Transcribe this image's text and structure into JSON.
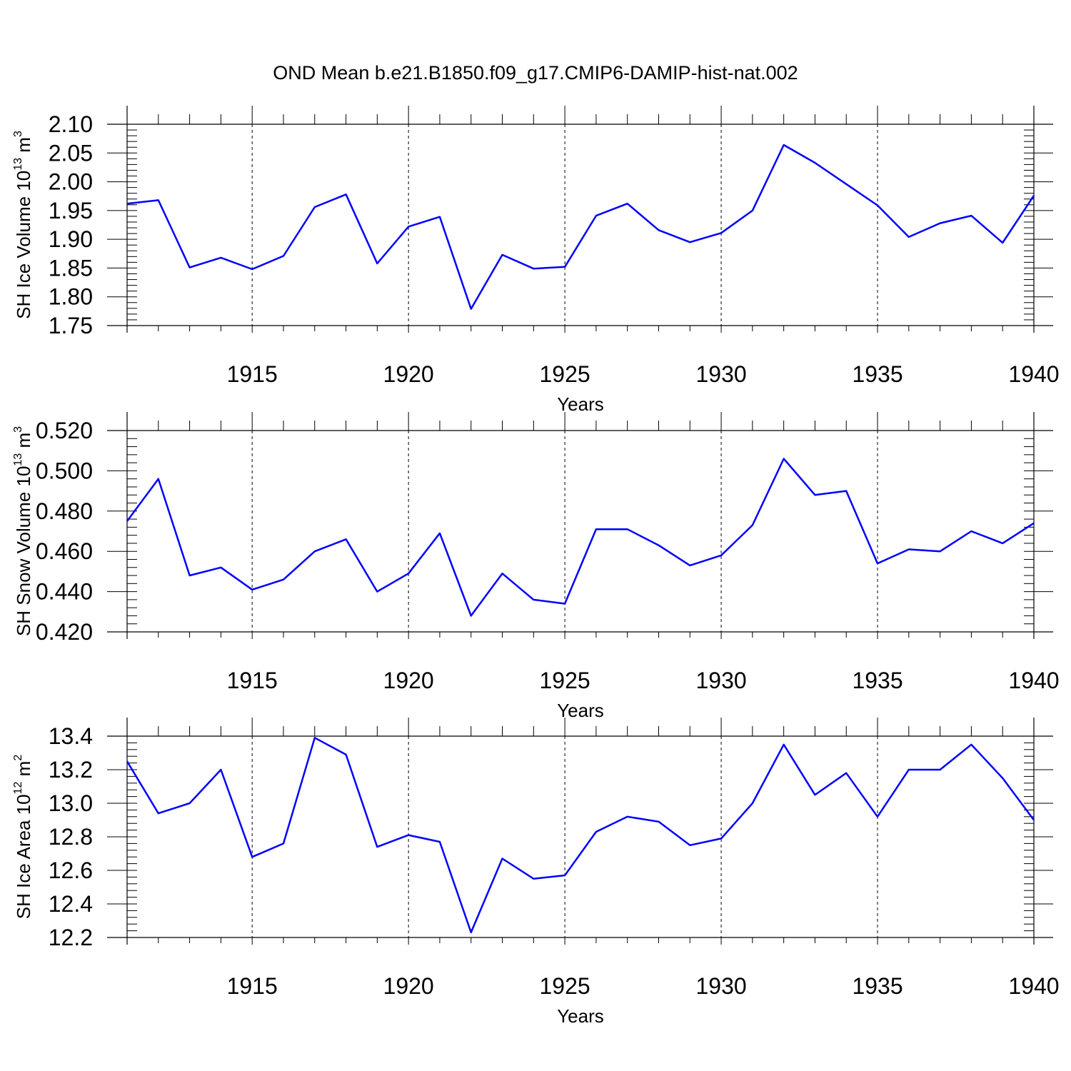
{
  "figure": {
    "title": "OND Mean b.e21.B1850.f09_g17.CMIP6-DAMIP-hist-nat.002"
  },
  "chart_data": [
    {
      "type": "line",
      "id": "ice-volume",
      "ylabel": {
        "text": "SH Ice Volume 10",
        "exp": "13",
        "unit": " m",
        "unit_exp": "3"
      },
      "xlabel": "Years",
      "xlim": [
        1911,
        1940
      ],
      "ylim": [
        1.75,
        2.1
      ],
      "x_ticks": [
        1915,
        1920,
        1925,
        1930,
        1935,
        1940
      ],
      "y_ticks": [
        "1.75",
        "1.80",
        "1.85",
        "1.90",
        "1.95",
        "2.00",
        "2.05",
        "2.10"
      ],
      "grid": "vertical-dashed",
      "line_color": "#0000ff",
      "series": [
        {
          "x": [
            1911,
            1912,
            1913,
            1914,
            1915,
            1916,
            1917,
            1918,
            1919,
            1920,
            1921,
            1922,
            1923,
            1924,
            1925,
            1926,
            1927,
            1928,
            1929,
            1930,
            1931,
            1932,
            1933,
            1934,
            1935,
            1936,
            1937,
            1938,
            1939,
            1940
          ],
          "values": [
            1.962,
            1.968,
            1.851,
            1.868,
            1.848,
            1.871,
            1.956,
            1.978,
            1.858,
            1.922,
            1.939,
            1.779,
            1.873,
            1.849,
            1.852,
            1.941,
            1.962,
            1.916,
            1.895,
            1.911,
            1.95,
            2.064,
            2.033,
            1.996,
            1.959,
            1.904,
            1.928,
            1.941,
            1.894,
            1.976
          ]
        }
      ]
    },
    {
      "type": "line",
      "id": "snow-volume",
      "ylabel": {
        "text": "SH Snow Volume 10",
        "exp": "13",
        "unit": " m",
        "unit_exp": "3"
      },
      "xlabel": "Years",
      "xlim": [
        1911,
        1940
      ],
      "ylim": [
        0.42,
        0.52
      ],
      "x_ticks": [
        1915,
        1920,
        1925,
        1930,
        1935,
        1940
      ],
      "y_ticks": [
        "0.420",
        "0.440",
        "0.460",
        "0.480",
        "0.500",
        "0.520"
      ],
      "grid": "vertical-dashed",
      "line_color": "#0000ff",
      "series": [
        {
          "x": [
            1911,
            1912,
            1913,
            1914,
            1915,
            1916,
            1917,
            1918,
            1919,
            1920,
            1921,
            1922,
            1923,
            1924,
            1925,
            1926,
            1927,
            1928,
            1929,
            1930,
            1931,
            1932,
            1933,
            1934,
            1935,
            1936,
            1937,
            1938,
            1939,
            1940
          ],
          "values": [
            0.475,
            0.496,
            0.448,
            0.452,
            0.441,
            0.446,
            0.46,
            0.466,
            0.44,
            0.449,
            0.469,
            0.428,
            0.449,
            0.436,
            0.434,
            0.471,
            0.471,
            0.463,
            0.453,
            0.458,
            0.473,
            0.506,
            0.488,
            0.49,
            0.454,
            0.461,
            0.46,
            0.47,
            0.464,
            0.474
          ]
        }
      ]
    },
    {
      "type": "line",
      "id": "ice-area",
      "ylabel": {
        "text": "SH Ice Area 10",
        "exp": "12",
        "unit": " m",
        "unit_exp": "2"
      },
      "xlabel": "Years",
      "xlim": [
        1911,
        1940
      ],
      "ylim": [
        12.2,
        13.4
      ],
      "x_ticks": [
        1915,
        1920,
        1925,
        1930,
        1935,
        1940
      ],
      "y_ticks": [
        "12.2",
        "12.4",
        "12.6",
        "12.8",
        "13.0",
        "13.2",
        "13.4"
      ],
      "grid": "vertical-dashed",
      "line_color": "#0000ff",
      "series": [
        {
          "x": [
            1911,
            1912,
            1913,
            1914,
            1915,
            1916,
            1917,
            1918,
            1919,
            1920,
            1921,
            1922,
            1923,
            1924,
            1925,
            1926,
            1927,
            1928,
            1929,
            1930,
            1931,
            1932,
            1933,
            1934,
            1935,
            1936,
            1937,
            1938,
            1939,
            1940
          ],
          "values": [
            13.25,
            12.94,
            13.0,
            13.2,
            12.68,
            12.76,
            13.39,
            13.29,
            12.74,
            12.81,
            12.77,
            12.23,
            12.67,
            12.55,
            12.57,
            12.83,
            12.92,
            12.89,
            12.75,
            12.79,
            13.0,
            13.35,
            13.05,
            13.18,
            12.92,
            13.2,
            13.2,
            13.35,
            13.15,
            12.9
          ]
        }
      ]
    }
  ]
}
